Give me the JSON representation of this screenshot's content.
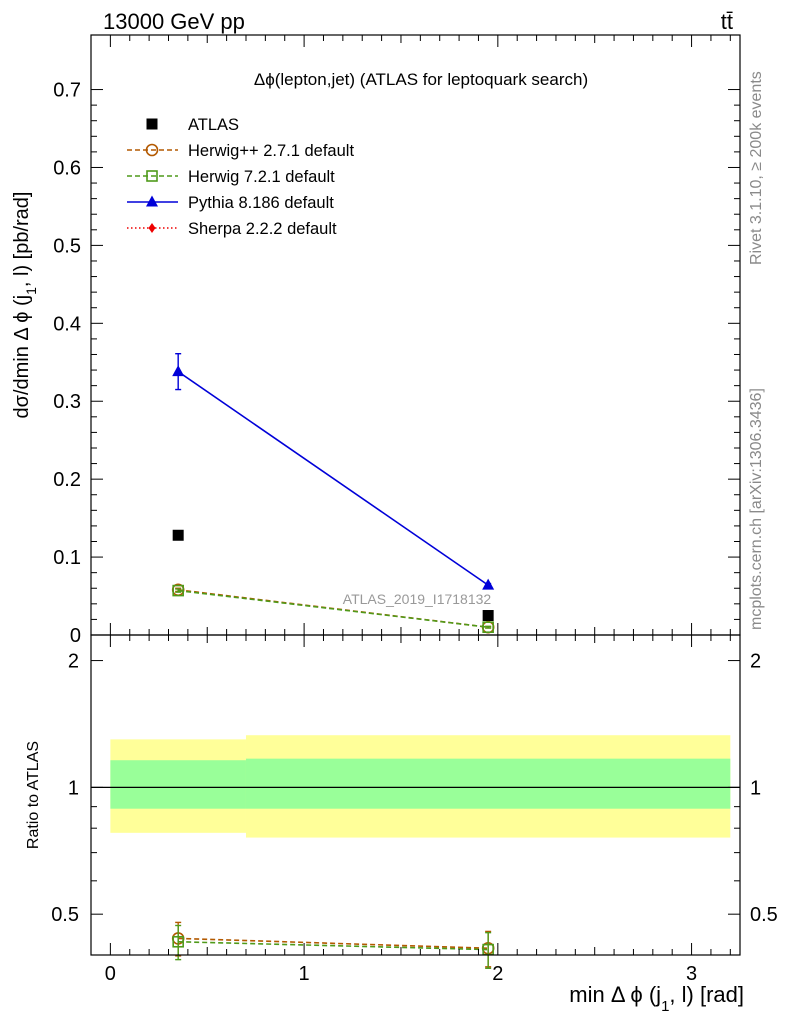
{
  "header": {
    "energy_label": "13000 GeV pp",
    "process_label": "tt̄"
  },
  "side_text": {
    "rivet": "Rivet 3.1.10, ≥ 200k events",
    "mcplots": "mcplots.cern.ch [arXiv:1306.3436]"
  },
  "watermark": "ATLAS_2019_I1718132",
  "colors": {
    "atlas": "#000000",
    "herwigpp": "#b35900",
    "herwig7": "#4f9a1a",
    "pythia": "#0000d8",
    "sherpa": "#ee0000",
    "band_outer": "#ffff99",
    "band_inner": "#99ff99"
  },
  "chart_data": [
    {
      "type": "line",
      "panel": "main",
      "title": "Δϕ(lepton,jet) (ATLAS for leptoquark search)",
      "xlabel": "min Δ ϕ (j1, l) [rad]",
      "ylabel": "dσ/dmin Δ ϕ (j1, l) [pb/rad]",
      "xlim": [
        -0.1,
        3.25
      ],
      "ylim": [
        0,
        0.77
      ],
      "yticks": [
        "0",
        "0.1",
        "0.2",
        "0.3",
        "0.4",
        "0.5",
        "0.6",
        "0.7"
      ],
      "legend": [
        {
          "key": "atlas",
          "label": "ATLAS",
          "marker": "square"
        },
        {
          "key": "herwigpp",
          "label": "Herwig++ 2.7.1 default",
          "marker": "open-circle",
          "dash": true
        },
        {
          "key": "herwig7",
          "label": "Herwig 7.2.1 default",
          "marker": "open-square",
          "dash": true
        },
        {
          "key": "pythia",
          "label": "Pythia 8.186 default",
          "marker": "triangle",
          "dash": false
        },
        {
          "key": "sherpa",
          "label": "Sherpa 2.2.2 default",
          "marker": "diamond",
          "dash": "dotted"
        }
      ],
      "series": [
        {
          "key": "atlas",
          "name": "ATLAS",
          "x": [
            0.35,
            1.95
          ],
          "y": [
            0.128,
            0.025
          ],
          "err": [
            0,
            0
          ]
        },
        {
          "key": "pythia",
          "name": "Pythia 8.186 default",
          "x": [
            0.35,
            1.95
          ],
          "y": [
            0.338,
            0.064
          ],
          "err": [
            0.023,
            0.002
          ]
        },
        {
          "key": "herwigpp",
          "name": "Herwig++ 2.7.1 default",
          "x": [
            0.35,
            1.95
          ],
          "y": [
            0.058,
            0.01
          ],
          "err": [
            0.002,
            0.001
          ]
        },
        {
          "key": "herwig7",
          "name": "Herwig 7.2.1 default",
          "x": [
            0.35,
            1.95
          ],
          "y": [
            0.057,
            0.01
          ],
          "err": [
            0.002,
            0.001
          ]
        }
      ]
    },
    {
      "type": "line",
      "panel": "ratio",
      "ylabel": "Ratio to ATLAS",
      "xlabel": "min Δ ϕ (j1, l) [rad]",
      "xlim": [
        -0.1,
        3.25
      ],
      "ylim": [
        0.4,
        2.3
      ],
      "log_y": true,
      "yticks": [
        "0.5",
        "1",
        "2"
      ],
      "xticks": [
        "0",
        "1",
        "2",
        "3"
      ],
      "bands": [
        {
          "x0": 0.0,
          "x1": 0.7,
          "inner": [
            0.89,
            1.16
          ],
          "outer": [
            0.78,
            1.3
          ]
        },
        {
          "x0": 0.7,
          "x1": 3.2,
          "inner": [
            0.89,
            1.17
          ],
          "outer": [
            0.76,
            1.33
          ]
        }
      ],
      "series": [
        {
          "key": "herwigpp",
          "name": "Herwig++ 2.7.1 default",
          "x": [
            0.35,
            1.95
          ],
          "y": [
            0.438,
            0.415
          ],
          "err": [
            0.04,
            0.04
          ]
        },
        {
          "key": "herwig7",
          "name": "Herwig 7.2.1 default",
          "x": [
            0.35,
            1.95
          ],
          "y": [
            0.43,
            0.412
          ],
          "err": [
            0.04,
            0.04
          ]
        }
      ]
    }
  ]
}
